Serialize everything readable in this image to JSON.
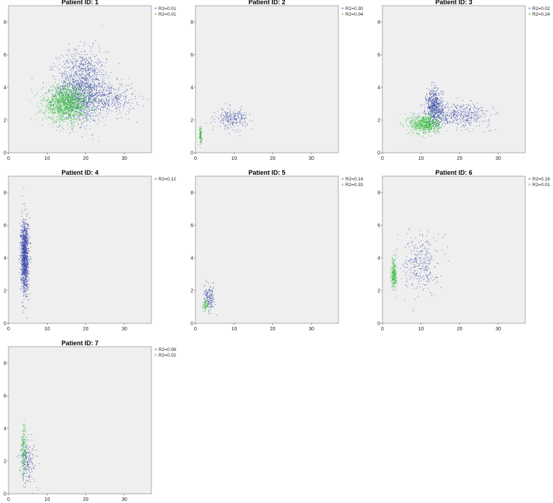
{
  "colors": {
    "blue": "#3a48a8",
    "green": "#2fbb3a",
    "plot_bg": "#efefef"
  },
  "chart_data": [
    {
      "type": "scatter",
      "title": "Patient ID: 1",
      "xlim": [
        0,
        37
      ],
      "ylim": [
        0,
        9
      ],
      "xticks": [
        "0",
        "10",
        "20",
        "30"
      ],
      "yticks": [
        "0",
        "2",
        "4",
        "6",
        "8"
      ],
      "legend_position": "top-right",
      "series": [
        {
          "name": "R2=0.01",
          "color": "blue",
          "marker": "x",
          "clusters": [
            {
              "cx": 19,
              "cy": 4.0,
              "sx": 3.2,
              "sy": 1.1,
              "n": 1400
            },
            {
              "cx": 26,
              "cy": 3.3,
              "sx": 3.5,
              "sy": 0.5,
              "n": 350
            }
          ]
        },
        {
          "name": "R2=0.01",
          "color": "green",
          "marker": "x",
          "clusters": [
            {
              "cx": 15,
              "cy": 3.0,
              "sx": 3.0,
              "sy": 0.55,
              "n": 1400
            }
          ]
        }
      ]
    },
    {
      "type": "scatter",
      "title": "Patient ID: 2",
      "xlim": [
        0,
        37
      ],
      "ylim": [
        0,
        9
      ],
      "xticks": [
        "0",
        "10",
        "20",
        "30"
      ],
      "yticks": [
        "0",
        "2",
        "4",
        "6",
        "8"
      ],
      "legend_position": "top-right",
      "series": [
        {
          "name": "R2=0.30",
          "color": "blue",
          "marker": "x",
          "clusters": [
            {
              "cx": 9.5,
              "cy": 2.1,
              "sx": 2.0,
              "sy": 0.3,
              "n": 240
            }
          ]
        },
        {
          "name": "R2=0.04",
          "color": "green",
          "marker": "x",
          "clusters": [
            {
              "cx": 1.3,
              "cy": 1.1,
              "sx": 0.18,
              "sy": 0.25,
              "n": 90
            }
          ]
        }
      ]
    },
    {
      "type": "scatter",
      "title": "Patient ID: 3",
      "xlim": [
        0,
        37
      ],
      "ylim": [
        0,
        9
      ],
      "xticks": [
        "0",
        "10",
        "20",
        "30"
      ],
      "yticks": [
        "0",
        "2",
        "4",
        "6",
        "8"
      ],
      "legend_position": "top-right",
      "series": [
        {
          "name": "R2=0.02",
          "color": "blue",
          "marker": "x",
          "clusters": [
            {
              "cx": 13.5,
              "cy": 2.8,
              "sx": 1.1,
              "sy": 0.55,
              "n": 600
            },
            {
              "cx": 20,
              "cy": 2.3,
              "sx": 4.0,
              "sy": 0.35,
              "n": 450
            }
          ]
        },
        {
          "name": "R2=0.24",
          "color": "green",
          "marker": "x",
          "clusters": [
            {
              "cx": 11,
              "cy": 1.75,
              "sx": 2.0,
              "sy": 0.3,
              "n": 650
            }
          ]
        }
      ]
    },
    {
      "type": "scatter",
      "title": "Patient ID: 4",
      "xlim": [
        0,
        37
      ],
      "ylim": [
        0,
        9
      ],
      "xticks": [
        "0",
        "10",
        "20",
        "30"
      ],
      "yticks": [
        "0",
        "2",
        "4",
        "6",
        "8"
      ],
      "legend_position": "top-right",
      "series": [
        {
          "name": "R2=0.12",
          "color": "blue",
          "marker": "x",
          "clusters": [
            {
              "cx": 4.2,
              "cy": 4.1,
              "sx": 0.5,
              "sy": 1.1,
              "n": 1300
            }
          ]
        }
      ]
    },
    {
      "type": "scatter",
      "title": "Patient ID: 5",
      "xlim": [
        0,
        37
      ],
      "ylim": [
        0,
        9
      ],
      "xticks": [
        "0",
        "10",
        "20",
        "30"
      ],
      "yticks": [
        "0",
        "2",
        "4",
        "6",
        "8"
      ],
      "legend_position": "top-right",
      "series": [
        {
          "name": "R2=0.14",
          "color": "blue",
          "marker": "x",
          "clusters": [
            {
              "cx": 3.6,
              "cy": 1.5,
              "sx": 0.7,
              "sy": 0.35,
              "n": 160
            }
          ]
        },
        {
          "name": "R2=0.33",
          "color": "green",
          "marker": "x",
          "clusters": [
            {
              "cx": 2.6,
              "cy": 1.1,
              "sx": 0.4,
              "sy": 0.2,
              "n": 70
            }
          ]
        }
      ]
    },
    {
      "type": "scatter",
      "title": "Patient ID: 6",
      "xlim": [
        0,
        37
      ],
      "ylim": [
        0,
        9
      ],
      "xticks": [
        "0",
        "10",
        "20",
        "30"
      ],
      "yticks": [
        "0",
        "2",
        "4",
        "6",
        "8"
      ],
      "legend_position": "top-right",
      "series": [
        {
          "name": "R2=0.18",
          "color": "blue",
          "marker": "x",
          "clusters": [
            {
              "cx": 10,
              "cy": 3.7,
              "sx": 2.2,
              "sy": 0.9,
              "n": 320
            }
          ]
        },
        {
          "name": "R2=0.01",
          "color": "green",
          "marker": "x",
          "clusters": [
            {
              "cx": 3.0,
              "cy": 3.0,
              "sx": 0.35,
              "sy": 0.45,
              "n": 260
            }
          ]
        }
      ]
    },
    {
      "type": "scatter",
      "title": "Patient ID: 7",
      "xlim": [
        0,
        37
      ],
      "ylim": [
        0,
        9
      ],
      "xticks": [
        "0",
        "10",
        "20",
        "30"
      ],
      "yticks": [
        "0",
        "2",
        "4",
        "6",
        "8"
      ],
      "legend_position": "top-right",
      "series": [
        {
          "name": "R2=0.08",
          "color": "blue",
          "marker": "x",
          "clusters": [
            {
              "cx": 5.0,
              "cy": 2.0,
              "sx": 1.1,
              "sy": 0.7,
              "n": 200
            }
          ]
        },
        {
          "name": "R2=0.02",
          "color": "green",
          "marker": "x",
          "clusters": [
            {
              "cx": 4.0,
              "cy": 2.7,
              "sx": 0.35,
              "sy": 0.8,
              "n": 180
            }
          ]
        }
      ]
    }
  ]
}
